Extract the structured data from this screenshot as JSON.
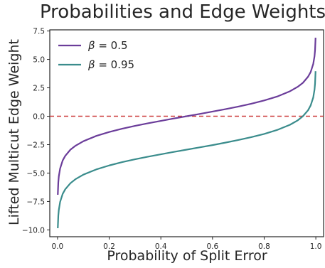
{
  "chart_data": {
    "type": "line",
    "title": "Probabilities and Edge Weights",
    "xlabel": "Probability of Split Error",
    "ylabel": "Lifted Multicut Edge Weight",
    "xlim": [
      -0.03,
      1.03
    ],
    "ylim": [
      -10.6,
      7.6
    ],
    "xticks": [
      0.0,
      0.2,
      0.4,
      0.6,
      0.8,
      1.0
    ],
    "xtick_labels": [
      "0.0",
      "0.2",
      "0.4",
      "0.6",
      "0.8",
      "1.0"
    ],
    "yticks": [
      -10.0,
      -7.5,
      -5.0,
      -2.5,
      0.0,
      2.5,
      5.0,
      7.5
    ],
    "ytick_labels": [
      "−10.0",
      "−7.5",
      "−5.0",
      "−2.5",
      "0.0",
      "2.5",
      "5.0",
      "7.5"
    ],
    "grid": false,
    "legend_position": "top-left",
    "reference_line": {
      "y": 0.0,
      "style": "dashed",
      "color": "#cc3b3b"
    },
    "series": [
      {
        "name": "β = 0.5",
        "legend_symbol": "β",
        "legend_value": " = 0.5",
        "color": "#6b3d9a",
        "x": [
          0.001,
          0.003,
          0.005,
          0.01,
          0.02,
          0.03,
          0.05,
          0.07,
          0.1,
          0.15,
          0.2,
          0.25,
          0.3,
          0.35,
          0.4,
          0.45,
          0.5,
          0.55,
          0.6,
          0.65,
          0.7,
          0.75,
          0.8,
          0.85,
          0.9,
          0.93,
          0.95,
          0.97,
          0.98,
          0.99,
          0.995,
          0.997,
          0.999
        ],
        "y": [
          -6.91,
          -5.81,
          -5.29,
          -4.6,
          -3.89,
          -3.48,
          -2.94,
          -2.59,
          -2.2,
          -1.73,
          -1.39,
          -1.1,
          -0.85,
          -0.62,
          -0.41,
          -0.2,
          0.0,
          0.2,
          0.41,
          0.62,
          0.85,
          1.1,
          1.39,
          1.73,
          2.2,
          2.59,
          2.94,
          3.48,
          3.89,
          4.6,
          5.29,
          5.81,
          6.91
        ]
      },
      {
        "name": "β = 0.95",
        "legend_symbol": "β",
        "legend_value": " = 0.95",
        "color": "#3a8c8c",
        "x": [
          0.001,
          0.003,
          0.005,
          0.01,
          0.02,
          0.03,
          0.05,
          0.07,
          0.1,
          0.15,
          0.2,
          0.25,
          0.3,
          0.35,
          0.4,
          0.45,
          0.5,
          0.55,
          0.6,
          0.65,
          0.7,
          0.75,
          0.8,
          0.85,
          0.9,
          0.93,
          0.95,
          0.97,
          0.98,
          0.99,
          0.995,
          0.997,
          0.999
        ],
        "y": [
          -9.85,
          -8.75,
          -8.24,
          -7.54,
          -6.83,
          -6.42,
          -5.89,
          -5.53,
          -5.14,
          -4.68,
          -4.33,
          -4.04,
          -3.79,
          -3.56,
          -3.35,
          -3.14,
          -2.94,
          -2.74,
          -2.54,
          -2.32,
          -2.09,
          -1.84,
          -1.56,
          -1.21,
          -0.75,
          -0.36,
          0.0,
          0.53,
          0.95,
          1.65,
          2.35,
          2.87,
          3.96
        ]
      }
    ]
  }
}
